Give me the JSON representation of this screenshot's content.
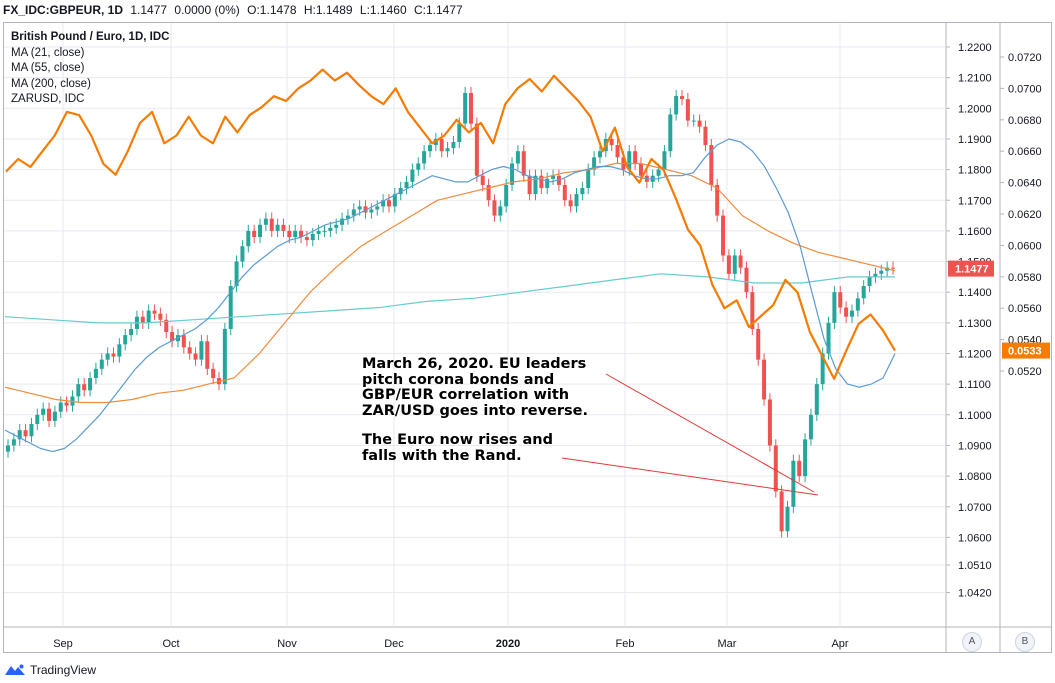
{
  "header": {
    "symbol": "FX_IDC:GBPEUR, 1D",
    "last": "1.1477",
    "change": "0.0000 (0%)",
    "open": "O:1.1478",
    "high": "H:1.1489",
    "low": "L:1.1460",
    "close": "C:1.1477"
  },
  "legend": {
    "title": "British Pound / Euro, 1D, IDC",
    "ma21": "MA (21, close)",
    "ma55": "MA (55, close)",
    "ma200": "MA (200, close)",
    "compare": "ZARUSD, IDC"
  },
  "annotations": {
    "note1_lines": [
      "March 26, 2020. EU leaders",
      "pitch corona bonds and",
      "GBP/EUR correlation with",
      "ZAR/USD goes into reverse."
    ],
    "note2_lines": [
      "The Euro now rises and",
      "falls with the Rand."
    ]
  },
  "footer": {
    "brand": "TradingView"
  },
  "buttons": {
    "a": "A",
    "b": "B"
  },
  "chart_data": {
    "type": "candlestick",
    "title": "British Pound / Euro, 1D, IDC",
    "x_labels": [
      "Sep",
      "Oct",
      "Nov",
      "Dec",
      "2020",
      "Feb",
      "Mar",
      "Apr"
    ],
    "left_axis": {
      "ticks": [
        "1.2200",
        "1.2100",
        "1.2000",
        "1.1900",
        "1.1800",
        "1.1700",
        "1.1600",
        "1.1500",
        "1.1400",
        "1.1300",
        "1.1200",
        "1.1100",
        "1.1000",
        "1.0900",
        "1.0800",
        "1.0700",
        "1.0600",
        "1.0510",
        "1.0420"
      ],
      "range": [
        1.04,
        1.225
      ],
      "last_label": "1.1477"
    },
    "right_axis": {
      "ticks": [
        "0.0720",
        "0.0700",
        "0.0680",
        "0.0660",
        "0.0640",
        "0.0620",
        "0.0600",
        "0.0580",
        "0.0560",
        "0.0540",
        "0.0520"
      ],
      "range": [
        0.0508,
        0.0734
      ],
      "last_label": "0.0533"
    },
    "gbpeur_close": [
      1.09,
      1.092,
      1.095,
      1.093,
      1.097,
      1.1,
      1.102,
      1.098,
      1.101,
      1.104,
      1.103,
      1.106,
      1.11,
      1.108,
      1.112,
      1.115,
      1.118,
      1.12,
      1.119,
      1.123,
      1.126,
      1.128,
      1.132,
      1.13,
      1.134,
      1.133,
      1.131,
      1.127,
      1.124,
      1.126,
      1.122,
      1.12,
      1.118,
      1.124,
      1.115,
      1.112,
      1.11,
      1.128,
      1.142,
      1.15,
      1.155,
      1.16,
      1.158,
      1.162,
      1.164,
      1.16,
      1.162,
      1.16,
      1.158,
      1.16,
      1.158,
      1.157,
      1.159,
      1.16,
      1.16,
      1.161,
      1.162,
      1.164,
      1.165,
      1.167,
      1.168,
      1.166,
      1.167,
      1.168,
      1.17,
      1.168,
      1.172,
      1.174,
      1.176,
      1.18,
      1.182,
      1.186,
      1.188,
      1.19,
      1.186,
      1.187,
      1.189,
      1.195,
      1.205,
      1.195,
      1.178,
      1.175,
      1.17,
      1.165,
      1.168,
      1.175,
      1.182,
      1.186,
      1.178,
      1.172,
      1.178,
      1.174,
      1.177,
      1.178,
      1.175,
      1.17,
      1.168,
      1.172,
      1.174,
      1.18,
      1.184,
      1.186,
      1.19,
      1.188,
      1.184,
      1.18,
      1.186,
      1.182,
      1.178,
      1.176,
      1.178,
      1.18,
      1.186,
      1.198,
      1.204,
      1.203,
      1.196,
      1.196,
      1.194,
      1.188,
      1.175,
      1.165,
      1.152,
      1.146,
      1.152,
      1.148,
      1.14,
      1.128,
      1.118,
      1.105,
      1.09,
      1.075,
      1.062,
      1.07,
      1.085,
      1.08,
      1.092,
      1.1,
      1.11,
      1.12,
      1.13,
      1.14,
      1.135,
      1.132,
      1.134,
      1.138,
      1.142,
      1.145,
      1.146,
      1.147,
      1.148,
      1.1477
    ],
    "ma21": [
      1.095,
      1.093,
      1.091,
      1.089,
      1.088,
      1.089,
      1.092,
      1.096,
      1.1,
      1.105,
      1.11,
      1.115,
      1.119,
      1.122,
      1.124,
      1.126,
      1.128,
      1.131,
      1.135,
      1.14,
      1.145,
      1.149,
      1.152,
      1.155,
      1.157,
      1.158,
      1.16,
      1.162,
      1.163,
      1.164,
      1.166,
      1.168,
      1.17,
      1.172,
      1.174,
      1.176,
      1.178,
      1.177,
      1.176,
      1.176,
      1.178,
      1.18,
      1.181,
      1.18,
      1.178,
      1.177,
      1.176,
      1.177,
      1.179,
      1.18,
      1.181,
      1.181,
      1.18,
      1.178,
      1.177,
      1.177,
      1.178,
      1.178,
      1.179,
      1.184,
      1.188,
      1.19,
      1.189,
      1.186,
      1.181,
      1.174,
      1.166,
      1.155,
      1.14,
      1.125,
      1.115,
      1.11,
      1.109,
      1.11,
      1.112,
      1.12
    ],
    "ma55": [
      1.109,
      1.107,
      1.105,
      1.104,
      1.104,
      1.105,
      1.107,
      1.108,
      1.11,
      1.112,
      1.12,
      1.13,
      1.14,
      1.148,
      1.155,
      1.16,
      1.165,
      1.17,
      1.172,
      1.174,
      1.176,
      1.177,
      1.179,
      1.18,
      1.182,
      1.182,
      1.18,
      1.178,
      1.174,
      1.165,
      1.16,
      1.156,
      1.153,
      1.151,
      1.149,
      1.147
    ],
    "ma200": [
      1.132,
      1.131,
      1.13,
      1.13,
      1.131,
      1.132,
      1.133,
      1.134,
      1.135,
      1.137,
      1.138,
      1.14,
      1.142,
      1.144,
      1.146,
      1.145,
      1.143,
      1.143,
      1.145,
      1.145
    ],
    "zarusd": [
      0.0647,
      0.0655,
      0.065,
      0.066,
      0.067,
      0.0685,
      0.0683,
      0.067,
      0.0652,
      0.0645,
      0.066,
      0.0678,
      0.0685,
      0.0665,
      0.067,
      0.0682,
      0.067,
      0.0665,
      0.0682,
      0.0672,
      0.0683,
      0.0688,
      0.0695,
      0.0692,
      0.07,
      0.0705,
      0.0712,
      0.0705,
      0.071,
      0.0702,
      0.0695,
      0.069,
      0.07,
      0.0685,
      0.0675,
      0.0665,
      0.067,
      0.068,
      0.0672,
      0.0678,
      0.0665,
      0.069,
      0.07,
      0.0706,
      0.0698,
      0.0708,
      0.07,
      0.0692,
      0.0682,
      0.066,
      0.0675,
      0.065,
      0.064,
      0.0655,
      0.0648,
      0.063,
      0.061,
      0.06,
      0.0575,
      0.056,
      0.0565,
      0.0548,
      0.0555,
      0.0562,
      0.0578,
      0.057,
      0.0545,
      0.053,
      0.0515,
      0.0533,
      0.055,
      0.0556,
      0.0546,
      0.0533
    ]
  },
  "colors": {
    "up": "#26a69a",
    "down": "#ef5350",
    "zar": "#f57c00",
    "ma21": "#5b9bd5",
    "ma55": "#f58a3a",
    "ma200": "#66cccc",
    "grid": "#e8eaf0",
    "callout": "#e53935"
  }
}
